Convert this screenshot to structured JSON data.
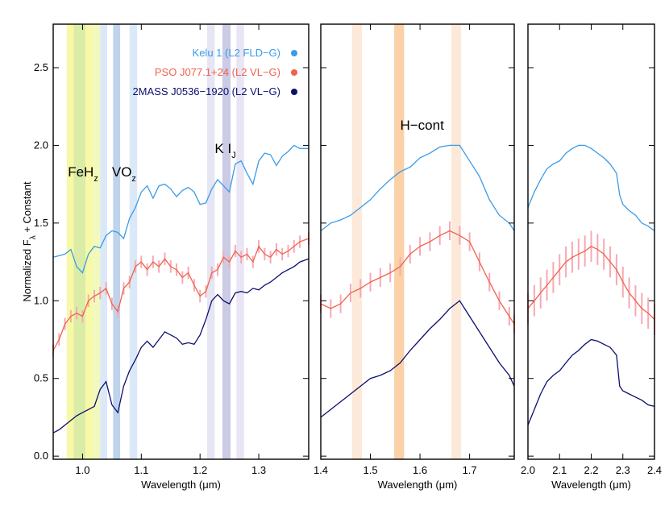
{
  "chart_data": {
    "type": "line",
    "ylabel": "Normalized F",
    "ylabel_sub": "λ",
    "ylabel_suffix": " + Constant",
    "ylim": [
      -0.02,
      2.78
    ],
    "yticks": [
      0.0,
      0.5,
      1.0,
      1.5,
      2.0,
      2.5
    ],
    "ytick_labels": [
      "0.0",
      "0.5",
      "1.0",
      "1.5",
      "2.0",
      "2.5"
    ],
    "legend": [
      {
        "label": "Kelu 1 (L2 FLD−G)",
        "color": "#3a9be8"
      },
      {
        "label": "PSO J077.1+24 (L2 VL−G)",
        "color": "#f0624a"
      },
      {
        "label": "2MASS J0536−1920 (L2 VL−G)",
        "color": "#0b0f6e"
      }
    ],
    "annotations": [
      {
        "text": "FeH",
        "sub": "z",
        "panel": 0,
        "x": 0.975,
        "y": 1.8
      },
      {
        "text": "VO",
        "sub": "z",
        "panel": 0,
        "x": 1.05,
        "y": 1.8
      },
      {
        "text": "K I",
        "sub": "J",
        "panel": 0,
        "x": 1.225,
        "y": 1.95
      },
      {
        "text": "H−cont",
        "panel": 1,
        "x": 1.56,
        "y": 2.1
      }
    ],
    "panels": [
      {
        "xlabel": "Wavelength (μm)",
        "xlim": [
          0.95,
          1.385
        ],
        "xticks": [
          1.0,
          1.1,
          1.2,
          1.3
        ],
        "xtick_labels": [
          "1.0",
          "1.1",
          "1.2",
          "1.3"
        ],
        "bands": [
          {
            "x0": 0.973,
            "x1": 0.985,
            "color": "#f4f78a"
          },
          {
            "x0": 0.985,
            "x1": 1.005,
            "color": "#cfe68a"
          },
          {
            "x0": 1.005,
            "x1": 1.017,
            "color": "#f4f78a"
          },
          {
            "x0": 1.017,
            "x1": 1.03,
            "color": "#eef7a8"
          },
          {
            "x0": 1.03,
            "x1": 1.042,
            "color": "#cfe0f4"
          },
          {
            "x0": 1.052,
            "x1": 1.064,
            "color": "#a9c4e6"
          },
          {
            "x0": 1.08,
            "x1": 1.093,
            "color": "#cfe0f4"
          },
          {
            "x0": 1.212,
            "x1": 1.225,
            "color": "#dcdcf0"
          },
          {
            "x0": 1.238,
            "x1": 1.252,
            "color": "#b9b9dd"
          },
          {
            "x0": 1.262,
            "x1": 1.275,
            "color": "#e2dcf2"
          }
        ],
        "series": [
          {
            "name": "Kelu 1 (L2 FLD−G)",
            "x": [
              0.95,
              0.96,
              0.97,
              0.98,
              0.99,
              1.0,
              1.01,
              1.02,
              1.03,
              1.04,
              1.05,
              1.06,
              1.07,
              1.08,
              1.09,
              1.1,
              1.11,
              1.12,
              1.13,
              1.14,
              1.15,
              1.16,
              1.17,
              1.18,
              1.19,
              1.2,
              1.21,
              1.22,
              1.23,
              1.24,
              1.25,
              1.26,
              1.27,
              1.28,
              1.29,
              1.3,
              1.31,
              1.32,
              1.33,
              1.34,
              1.35,
              1.36,
              1.37,
              1.385
            ],
            "y": [
              1.28,
              1.29,
              1.3,
              1.33,
              1.22,
              1.18,
              1.3,
              1.35,
              1.34,
              1.42,
              1.45,
              1.44,
              1.4,
              1.53,
              1.6,
              1.7,
              1.74,
              1.66,
              1.74,
              1.75,
              1.72,
              1.67,
              1.71,
              1.73,
              1.7,
              1.62,
              1.63,
              1.72,
              1.78,
              1.74,
              1.7,
              1.88,
              1.9,
              1.82,
              1.75,
              1.9,
              1.95,
              1.94,
              1.87,
              1.93,
              1.96,
              2.0,
              1.98,
              1.98
            ]
          },
          {
            "name": "PSO J077.1+24 (L2 VL−G)",
            "x": [
              0.95,
              0.96,
              0.97,
              0.98,
              0.99,
              1.0,
              1.01,
              1.02,
              1.03,
              1.04,
              1.05,
              1.06,
              1.07,
              1.08,
              1.09,
              1.1,
              1.11,
              1.12,
              1.13,
              1.14,
              1.15,
              1.16,
              1.17,
              1.18,
              1.19,
              1.2,
              1.21,
              1.22,
              1.23,
              1.24,
              1.25,
              1.26,
              1.27,
              1.28,
              1.29,
              1.3,
              1.31,
              1.32,
              1.33,
              1.34,
              1.35,
              1.36,
              1.37,
              1.385
            ],
            "y": [
              0.68,
              0.75,
              0.85,
              0.9,
              0.92,
              0.9,
              1.0,
              1.03,
              1.05,
              1.08,
              0.98,
              0.93,
              1.08,
              1.12,
              1.22,
              1.25,
              1.2,
              1.25,
              1.22,
              1.27,
              1.22,
              1.2,
              1.15,
              1.18,
              1.1,
              1.03,
              1.06,
              1.18,
              1.2,
              1.28,
              1.25,
              1.32,
              1.28,
              1.3,
              1.25,
              1.35,
              1.3,
              1.28,
              1.33,
              1.3,
              1.32,
              1.35,
              1.38,
              1.4
            ],
            "err": 0.04
          },
          {
            "name": "2MASS J0536−1920 (L2 VL−G)",
            "x": [
              0.95,
              0.96,
              0.97,
              0.98,
              0.99,
              1.0,
              1.01,
              1.02,
              1.03,
              1.04,
              1.05,
              1.06,
              1.07,
              1.08,
              1.09,
              1.1,
              1.11,
              1.12,
              1.13,
              1.14,
              1.15,
              1.16,
              1.17,
              1.18,
              1.19,
              1.2,
              1.21,
              1.22,
              1.23,
              1.24,
              1.25,
              1.26,
              1.27,
              1.28,
              1.29,
              1.3,
              1.31,
              1.32,
              1.33,
              1.34,
              1.35,
              1.36,
              1.37,
              1.385
            ],
            "y": [
              0.15,
              0.17,
              0.2,
              0.23,
              0.26,
              0.28,
              0.3,
              0.32,
              0.43,
              0.48,
              0.33,
              0.28,
              0.45,
              0.55,
              0.62,
              0.7,
              0.74,
              0.7,
              0.75,
              0.8,
              0.78,
              0.76,
              0.72,
              0.73,
              0.72,
              0.78,
              0.88,
              1.0,
              1.04,
              1.0,
              0.98,
              1.05,
              1.06,
              1.05,
              1.08,
              1.07,
              1.1,
              1.12,
              1.15,
              1.18,
              1.2,
              1.22,
              1.25,
              1.27
            ]
          }
        ]
      },
      {
        "xlabel": "Wavelength (μm)",
        "xlim": [
          1.4,
          1.79
        ],
        "xticks": [
          1.4,
          1.5,
          1.6,
          1.7
        ],
        "xtick_labels": [
          "1.4",
          "1.5",
          "1.6",
          "1.7"
        ],
        "bands": [
          {
            "x0": 1.463,
            "x1": 1.483,
            "color": "#fbe2cc"
          },
          {
            "x0": 1.548,
            "x1": 1.568,
            "color": "#f9c28a"
          },
          {
            "x0": 1.663,
            "x1": 1.683,
            "color": "#fbe2cc"
          }
        ],
        "series": [
          {
            "name": "Kelu 1 (L2 FLD−G)",
            "x": [
              1.4,
              1.42,
              1.44,
              1.46,
              1.48,
              1.5,
              1.52,
              1.54,
              1.56,
              1.58,
              1.6,
              1.62,
              1.64,
              1.66,
              1.68,
              1.7,
              1.72,
              1.74,
              1.76,
              1.78,
              1.79
            ],
            "y": [
              1.45,
              1.5,
              1.52,
              1.55,
              1.6,
              1.65,
              1.72,
              1.78,
              1.83,
              1.86,
              1.92,
              1.95,
              1.99,
              2.0,
              2.0,
              1.9,
              1.8,
              1.65,
              1.55,
              1.5,
              1.45
            ]
          },
          {
            "name": "PSO J077.1+24 (L2 VL−G)",
            "x": [
              1.4,
              1.42,
              1.44,
              1.46,
              1.48,
              1.5,
              1.52,
              1.54,
              1.56,
              1.58,
              1.6,
              1.62,
              1.64,
              1.66,
              1.68,
              1.7,
              1.72,
              1.74,
              1.76,
              1.78,
              1.79
            ],
            "y": [
              0.98,
              0.95,
              0.98,
              1.05,
              1.08,
              1.12,
              1.15,
              1.18,
              1.22,
              1.3,
              1.35,
              1.38,
              1.42,
              1.45,
              1.42,
              1.38,
              1.25,
              1.12,
              1.0,
              0.9,
              0.85
            ],
            "err": 0.06
          },
          {
            "name": "2MASS J0536−1920 (L2 VL−G)",
            "x": [
              1.4,
              1.42,
              1.44,
              1.46,
              1.48,
              1.5,
              1.52,
              1.54,
              1.56,
              1.58,
              1.6,
              1.62,
              1.64,
              1.66,
              1.68,
              1.7,
              1.72,
              1.74,
              1.76,
              1.78,
              1.79
            ],
            "y": [
              0.25,
              0.3,
              0.35,
              0.4,
              0.45,
              0.5,
              0.52,
              0.55,
              0.6,
              0.68,
              0.75,
              0.82,
              0.88,
              0.95,
              1.0,
              0.9,
              0.8,
              0.7,
              0.6,
              0.52,
              0.45
            ]
          }
        ]
      },
      {
        "xlabel": "Wavelength (μm)",
        "xlim": [
          2.0,
          2.4
        ],
        "xticks": [
          2.0,
          2.1,
          2.2,
          2.3,
          2.4
        ],
        "xtick_labels": [
          "2.0",
          "2.1",
          "2.2",
          "2.3",
          "2.4"
        ],
        "bands": [],
        "series": [
          {
            "name": "Kelu 1 (L2 FLD−G)",
            "x": [
              2.0,
              2.02,
              2.04,
              2.06,
              2.08,
              2.1,
              2.12,
              2.14,
              2.16,
              2.18,
              2.2,
              2.22,
              2.24,
              2.26,
              2.28,
              2.29,
              2.3,
              2.32,
              2.34,
              2.36,
              2.38,
              2.4
            ],
            "y": [
              1.6,
              1.7,
              1.78,
              1.85,
              1.88,
              1.9,
              1.95,
              1.98,
              2.0,
              2.0,
              1.98,
              1.95,
              1.92,
              1.88,
              1.82,
              1.68,
              1.62,
              1.58,
              1.55,
              1.5,
              1.48,
              1.45
            ]
          },
          {
            "name": "PSO J077.1+24 (L2 VL−G)",
            "x": [
              2.0,
              2.02,
              2.04,
              2.06,
              2.08,
              2.1,
              2.12,
              2.14,
              2.16,
              2.18,
              2.2,
              2.22,
              2.24,
              2.26,
              2.28,
              2.3,
              2.32,
              2.34,
              2.36,
              2.38,
              2.4
            ],
            "y": [
              0.95,
              1.0,
              1.05,
              1.1,
              1.15,
              1.2,
              1.25,
              1.28,
              1.3,
              1.32,
              1.35,
              1.33,
              1.3,
              1.25,
              1.2,
              1.12,
              1.05,
              1.0,
              0.95,
              0.92,
              0.88
            ],
            "err": 0.1
          },
          {
            "name": "2MASS J0536−1920 (L2 VL−G)",
            "x": [
              2.0,
              2.02,
              2.04,
              2.06,
              2.08,
              2.1,
              2.12,
              2.14,
              2.16,
              2.18,
              2.2,
              2.22,
              2.24,
              2.26,
              2.28,
              2.29,
              2.3,
              2.32,
              2.34,
              2.36,
              2.38,
              2.4
            ],
            "y": [
              0.2,
              0.3,
              0.4,
              0.48,
              0.52,
              0.55,
              0.6,
              0.65,
              0.68,
              0.72,
              0.75,
              0.74,
              0.72,
              0.7,
              0.65,
              0.45,
              0.42,
              0.4,
              0.38,
              0.36,
              0.33,
              0.32
            ]
          }
        ]
      }
    ]
  }
}
